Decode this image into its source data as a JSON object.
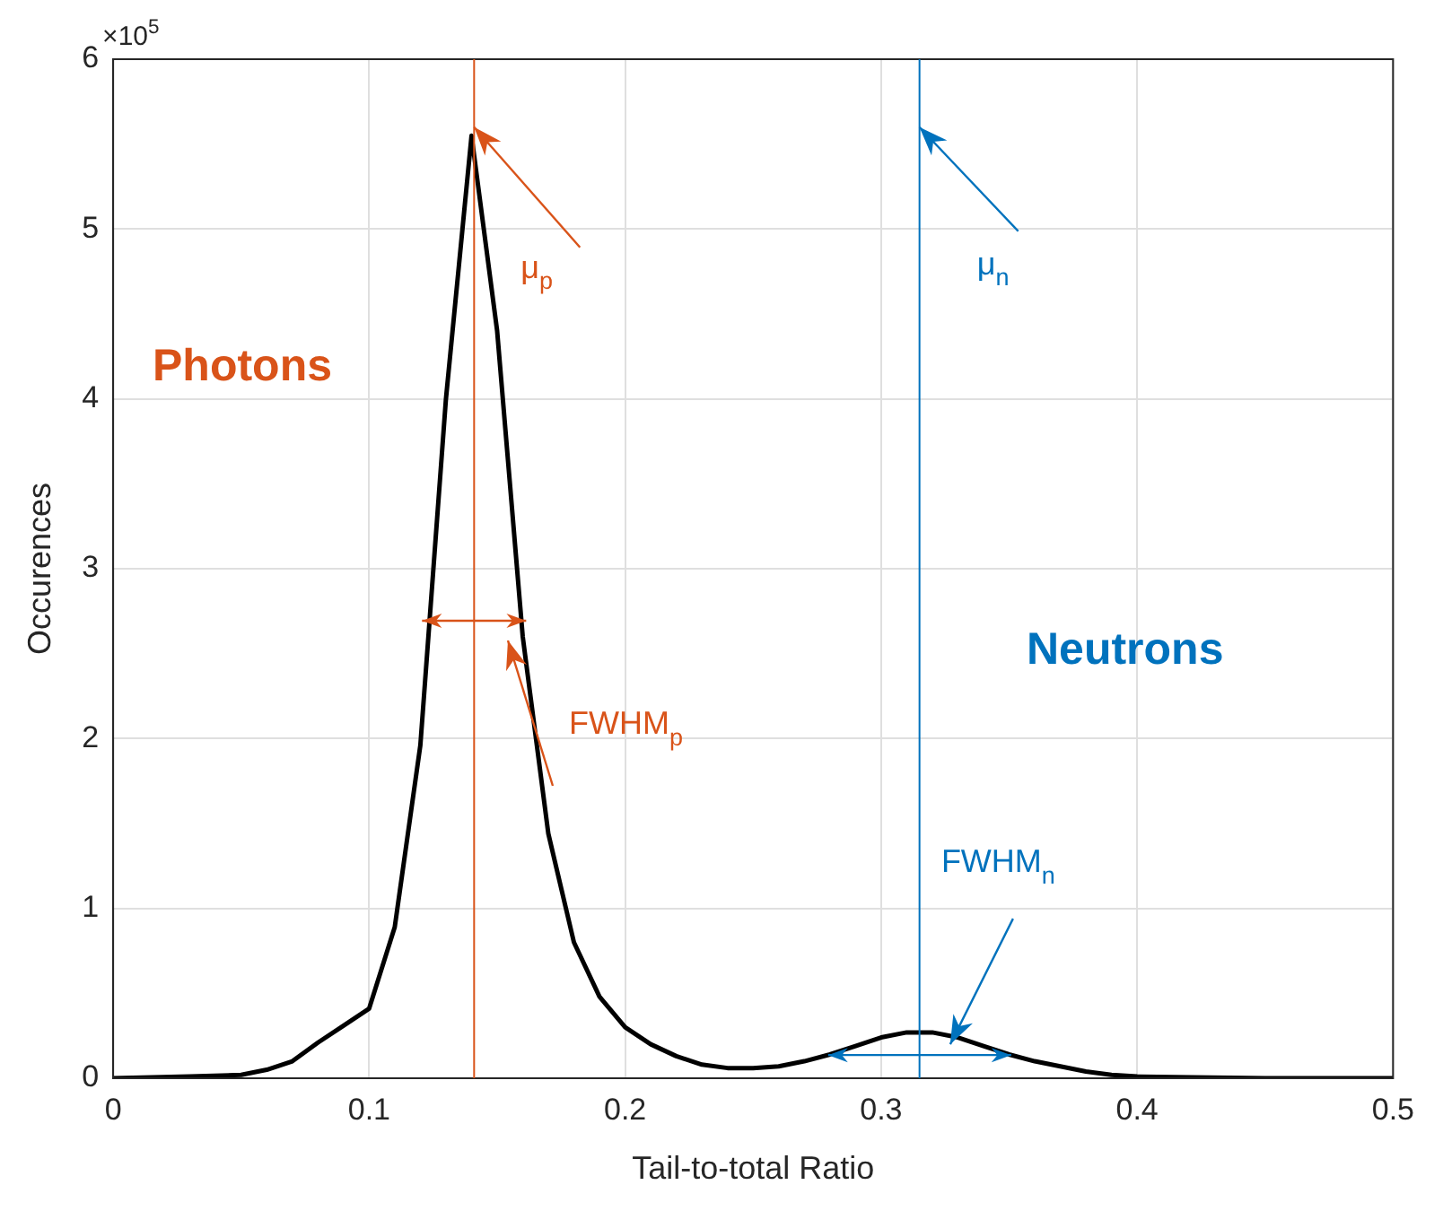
{
  "chart_data": {
    "type": "line",
    "xlabel": "Tail-to-total Ratio",
    "ylabel": "Occurences",
    "xlim": [
      0,
      0.5
    ],
    "xticks": [
      0,
      0.1,
      0.2,
      0.3,
      0.4,
      0.5
    ],
    "ylim": [
      0,
      6
    ],
    "yticks": [
      0,
      1,
      2,
      3,
      4,
      5,
      6
    ],
    "grid": true,
    "legend": false,
    "series": [
      {
        "color": "#000000",
        "x": [
          0,
          0.03,
          0.05,
          0.06,
          0.07,
          0.08,
          0.09,
          0.1,
          0.11,
          0.12,
          0.13,
          0.14,
          0.15,
          0.16,
          0.17,
          0.18,
          0.19,
          0.2,
          0.21,
          0.22,
          0.23,
          0.24,
          0.25,
          0.26,
          0.27,
          0.28,
          0.29,
          0.3,
          0.31,
          0.32,
          0.33,
          0.34,
          0.35,
          0.36,
          0.37,
          0.38,
          0.39,
          0.4,
          0.45,
          0.5
        ],
        "values": [
          0,
          0.01,
          0.02,
          0.05,
          0.1,
          0.21,
          0.31,
          0.41,
          0.89,
          1.96,
          4.0,
          5.55,
          4.4,
          2.6,
          1.44,
          0.8,
          0.48,
          0.3,
          0.2,
          0.13,
          0.08,
          0.06,
          0.06,
          0.07,
          0.1,
          0.14,
          0.19,
          0.24,
          0.27,
          0.27,
          0.24,
          0.19,
          0.14,
          0.1,
          0.07,
          0.04,
          0.02,
          0.01,
          0,
          0
        ]
      }
    ],
    "ref_lines": [
      {
        "axis": "x",
        "value": 0.141,
        "color": "#d95319"
      },
      {
        "axis": "x",
        "value": 0.315,
        "color": "#0072bd"
      }
    ],
    "annotations": [
      "Photons",
      "Neutrons",
      {
        "text": "μ$_{p}$",
        "x": 0.141,
        "y": 5.6
      },
      {
        "text": "μ$_{n}$",
        "x": 0.315,
        "y": 5.6
      },
      "FWHM$_{p}$",
      {
        "text": "FWHM$_{n}$",
        "x": 0.327,
        "y": 0.2
      },
      "×10$^{5}$"
    ]
  }
}
